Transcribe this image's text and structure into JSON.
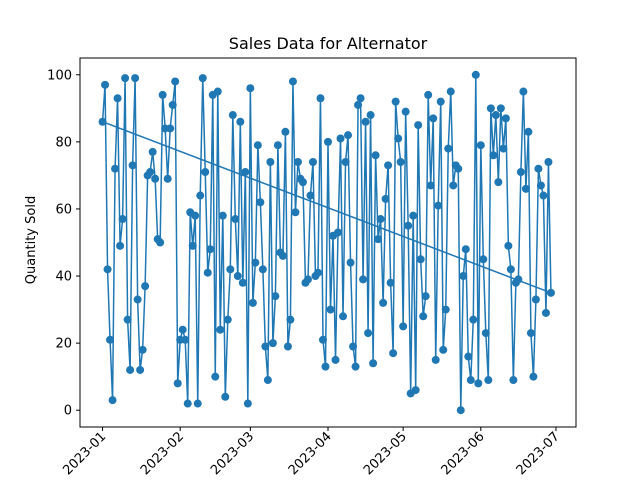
{
  "chart_data": {
    "type": "line",
    "title": "Sales Data for Alternator",
    "xlabel": "",
    "ylabel": "Quantity Sold",
    "x_start": "2023-01-01",
    "x_ticks": [
      "2023-01",
      "2023-02",
      "2023-03",
      "2023-04",
      "2023-05",
      "2023-06",
      "2023-07"
    ],
    "y_ticks": [
      0,
      20,
      40,
      60,
      80,
      100
    ],
    "ylim": [
      -5,
      105
    ],
    "xlim": [
      "2022-12-23",
      "2023-07-09"
    ],
    "grid": false,
    "series": [
      {
        "values": [
          86,
          97,
          42,
          21,
          3,
          72,
          93,
          49,
          57,
          99,
          27,
          12,
          73,
          99,
          33,
          12,
          18,
          37,
          70,
          71,
          77,
          69,
          51,
          50,
          94,
          84,
          69,
          84,
          91,
          98,
          8,
          21,
          24,
          21,
          2,
          59,
          49,
          58,
          2,
          64,
          99,
          71,
          41,
          48,
          94,
          10,
          95,
          24,
          58,
          4,
          27,
          42,
          88,
          57,
          40,
          86,
          38,
          71,
          2,
          96,
          32,
          44,
          79,
          62,
          42,
          19,
          9,
          74,
          20,
          34,
          79,
          47,
          46,
          83,
          19,
          27,
          98,
          59,
          74,
          69,
          68,
          38,
          39,
          64,
          74,
          40,
          41,
          93,
          21,
          13,
          80,
          30,
          52,
          15,
          53,
          81,
          28,
          74,
          82,
          44,
          19,
          13,
          91,
          93,
          39,
          86,
          23,
          88,
          14,
          76,
          51,
          57,
          32,
          63,
          73,
          38,
          17,
          92,
          81,
          74,
          25,
          89,
          55,
          5,
          58,
          6,
          85,
          45,
          28,
          34,
          94,
          67,
          87,
          15,
          61,
          92,
          18,
          30,
          78,
          95,
          67,
          73,
          72,
          0,
          40,
          48,
          16,
          9,
          27,
          100,
          8,
          79,
          45,
          23,
          9,
          90,
          76,
          88,
          68,
          90,
          78,
          87,
          49,
          42,
          9,
          38,
          39,
          71,
          95,
          66,
          83,
          23,
          10,
          33,
          72,
          67,
          64,
          29,
          74,
          35
        ],
        "color": "#1f77b4"
      },
      {
        "trend": [
          86,
          35
        ],
        "color": "#1f77b4"
      }
    ]
  }
}
